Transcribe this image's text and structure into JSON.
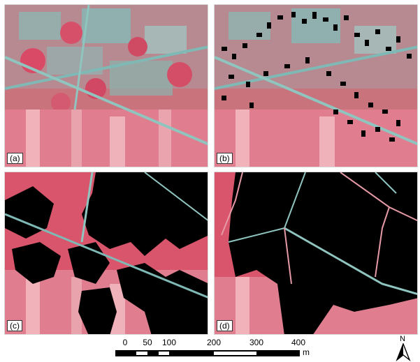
{
  "panels": [
    {
      "id": "a",
      "label": "(a)"
    },
    {
      "id": "b",
      "label": "(b)"
    },
    {
      "id": "c",
      "label": "(c)"
    },
    {
      "id": "d",
      "label": "(d)"
    }
  ],
  "scale_bar": {
    "ticks": [
      "0",
      "50",
      "100",
      "200",
      "300",
      "400"
    ],
    "unit": "m"
  },
  "north_arrow": {
    "label": "N",
    "icon": "north-arrow-icon"
  },
  "colors": {
    "vegetation_red": "#d9556b",
    "urban_cyan": "#7fb9b6",
    "field_pink": "#e48a98",
    "mask_black": "#000000"
  }
}
